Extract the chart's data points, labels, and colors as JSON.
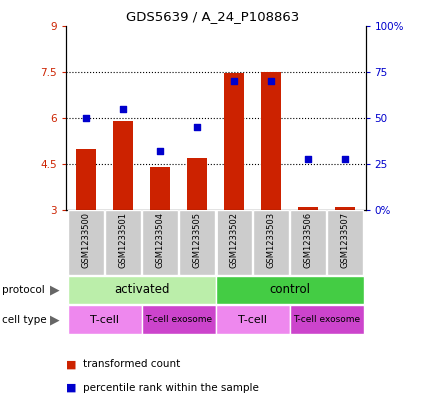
{
  "title": "GDS5639 / A_24_P108863",
  "samples": [
    "GSM1233500",
    "GSM1233501",
    "GSM1233504",
    "GSM1233505",
    "GSM1233502",
    "GSM1233503",
    "GSM1233506",
    "GSM1233507"
  ],
  "red_values": [
    5.0,
    5.9,
    4.4,
    4.7,
    7.45,
    7.5,
    3.1,
    3.1
  ],
  "blue_values": [
    50,
    55,
    32,
    45,
    70,
    70,
    28,
    28
  ],
  "ylim_left": [
    3,
    9
  ],
  "ylim_right": [
    0,
    100
  ],
  "yticks_left": [
    3,
    4.5,
    6,
    7.5,
    9
  ],
  "yticks_right": [
    0,
    25,
    50,
    75,
    100
  ],
  "ytick_labels_left": [
    "3",
    "4.5",
    "6",
    "7.5",
    "9"
  ],
  "ytick_labels_right": [
    "0%",
    "25",
    "50",
    "75",
    "100%"
  ],
  "hlines": [
    4.5,
    6.0,
    7.5
  ],
  "bar_color": "#cc2200",
  "dot_color": "#0000cc",
  "bar_width": 0.55,
  "protocol_activated_color": "#bbeeaa",
  "protocol_control_color": "#44cc44",
  "celltype_tcell_color": "#ee88ee",
  "celltype_exosome_color": "#cc44cc",
  "left_label_color": "#cc2200",
  "right_label_color": "#0000cc",
  "sample_bg_color": "#cccccc",
  "plot_bg_color": "#ffffff"
}
